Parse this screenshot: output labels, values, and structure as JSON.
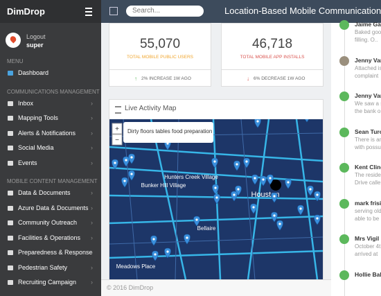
{
  "header": {
    "brand": "DimDrop",
    "search_placeholder": "Search...",
    "title": "Location-Based Mobile Communications Manage"
  },
  "user": {
    "logout": "Logout",
    "name": "super"
  },
  "sidebar": {
    "sections": [
      {
        "label": "MENU",
        "items": [
          "Dashboard"
        ]
      },
      {
        "label": "COMMUNICATIONS MANAGEMENT",
        "items": [
          "Inbox",
          "Mapping Tools",
          "Alerts & Notifications",
          "Social Media",
          "Events"
        ]
      },
      {
        "label": "MOBILE CONTENT MANAGEMENT",
        "items": [
          "Data & Documents",
          "Azure Data & Documents",
          "Community Outreach",
          "Facilities & Operations",
          "Preparedness & Response",
          "Pedestrian Safety",
          "Recruiting Campaign"
        ]
      }
    ]
  },
  "stats": [
    {
      "value": "55,070",
      "label": "TOTAL MOBILE PUBLIC USERS",
      "change": "2% INCREASE 1W AGO"
    },
    {
      "value": "46,718",
      "label": "TOTAL MOBILE APP INSTALLS",
      "change": "6% DECREASE 1W AGO"
    }
  ],
  "map": {
    "title": "Live Activity Map",
    "popup": "Dirty floors tables food preparation",
    "places": [
      "Houston",
      "Bellaire",
      "Hunters Creek Village",
      "Bunker Hill Village",
      "Meadows Place"
    ],
    "zoom": [
      "+",
      "−"
    ]
  },
  "feed": [
    {
      "name": "Jaime Garc",
      "lines": [
        "Baked goo",
        "filling. O.."
      ]
    },
    {
      "name": "Jenny Varg",
      "lines": [
        "Attached is",
        "complaint"
      ]
    },
    {
      "name": "Jenny Varg",
      "lines": [
        "We saw a s",
        "the bank o"
      ]
    },
    {
      "name": "Sean Turon",
      "lines": [
        "There is an",
        "with possu"
      ]
    },
    {
      "name": "Kent Cling",
      "lines": [
        "The reside",
        "Drive calle"
      ]
    },
    {
      "name": "mark frisin",
      "lines": [
        "serving old",
        "able to be"
      ]
    },
    {
      "name": "Mrs Vigil",
      "lines": [
        "October 4t",
        "arrived at"
      ]
    },
    {
      "name": "Hollie Ball",
      "lines": []
    }
  ],
  "footer": "© 2016 DimDrop"
}
